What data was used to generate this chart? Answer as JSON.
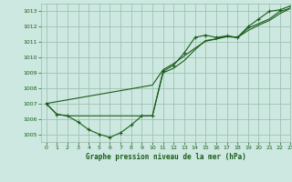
{
  "title": "Graphe pression niveau de la mer (hPa)",
  "bg_color": "#cce8e0",
  "grid_color": "#99bbaa",
  "line_color": "#1a5c1a",
  "xlim": [
    -0.5,
    23
  ],
  "ylim": [
    1004.5,
    1013.5
  ],
  "yticks": [
    1005,
    1006,
    1007,
    1008,
    1009,
    1010,
    1011,
    1012,
    1013
  ],
  "xticks": [
    0,
    1,
    2,
    3,
    4,
    5,
    6,
    7,
    8,
    9,
    10,
    11,
    12,
    13,
    14,
    15,
    16,
    17,
    18,
    19,
    20,
    21,
    22,
    23
  ],
  "series": [
    {
      "x": [
        0,
        1,
        2,
        3,
        4,
        5,
        6,
        7,
        8,
        9,
        10,
        11,
        12,
        13,
        14,
        15,
        16,
        17,
        18,
        19,
        20,
        21,
        22,
        23
      ],
      "y": [
        1007.0,
        1006.3,
        1006.2,
        1005.8,
        1005.3,
        1005.0,
        1004.8,
        1005.1,
        1005.6,
        1006.2,
        1006.2,
        1009.1,
        1009.5,
        1010.3,
        1011.3,
        1011.45,
        1011.3,
        1011.4,
        1011.3,
        1012.0,
        1012.5,
        1013.0,
        1013.1,
        1013.35
      ],
      "marker": true
    },
    {
      "x": [
        0,
        1,
        2,
        3,
        4,
        5,
        6,
        7,
        8,
        9,
        10,
        11,
        12,
        13,
        14,
        15,
        16,
        17,
        18,
        19,
        20,
        21,
        22,
        23
      ],
      "y": [
        1007.0,
        1006.3,
        1006.2,
        1006.2,
        1006.2,
        1006.2,
        1006.2,
        1006.2,
        1006.2,
        1006.2,
        1006.2,
        1009.0,
        1009.3,
        1009.8,
        1010.5,
        1011.1,
        1011.2,
        1011.4,
        1011.3,
        1011.9,
        1012.2,
        1012.5,
        1013.0,
        1013.2
      ],
      "marker": false
    },
    {
      "x": [
        0,
        10,
        11,
        12,
        13,
        14,
        15,
        16,
        17,
        18,
        19,
        20,
        21,
        22,
        23
      ],
      "y": [
        1007.0,
        1008.2,
        1009.2,
        1009.6,
        1010.1,
        1010.6,
        1011.05,
        1011.2,
        1011.35,
        1011.3,
        1011.75,
        1012.1,
        1012.4,
        1012.85,
        1013.2
      ],
      "marker": false
    }
  ]
}
